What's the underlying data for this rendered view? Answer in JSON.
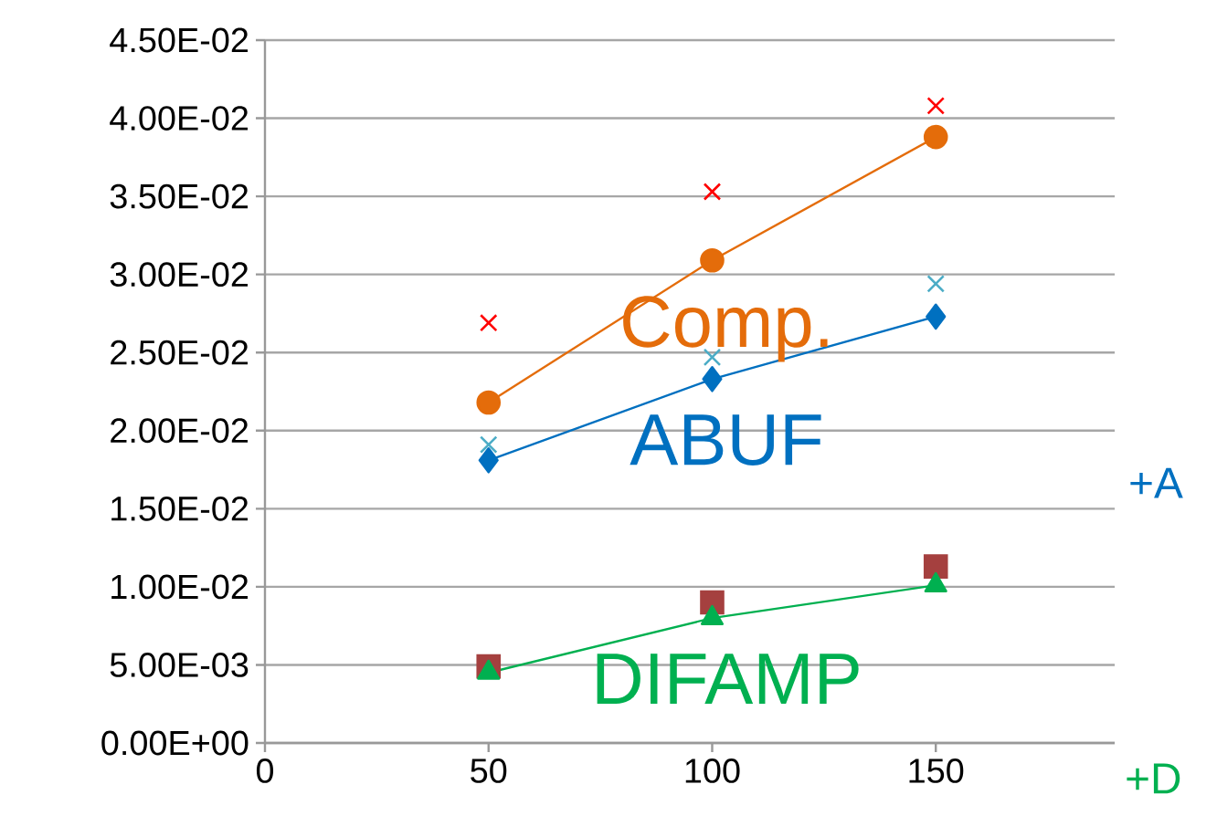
{
  "chart_data": {
    "type": "line",
    "x": [
      50,
      100,
      150
    ],
    "xlim": [
      0,
      190
    ],
    "xticks": [
      0,
      50,
      100,
      150
    ],
    "ylim": [
      0,
      0.045
    ],
    "yticks": [
      {
        "value": 0,
        "label": "0.00E+00"
      },
      {
        "value": 0.005,
        "label": "5.00E-03"
      },
      {
        "value": 0.01,
        "label": "1.00E-02"
      },
      {
        "value": 0.015,
        "label": "1.50E-02"
      },
      {
        "value": 0.02,
        "label": "2.00E-02"
      },
      {
        "value": 0.025,
        "label": "2.50E-02"
      },
      {
        "value": 0.03,
        "label": "3.00E-02"
      },
      {
        "value": 0.035,
        "label": "3.50E-02"
      },
      {
        "value": 0.04,
        "label": "4.00E-02"
      },
      {
        "value": 0.045,
        "label": "4.50E-02"
      }
    ],
    "grid": "y",
    "series": [
      {
        "type": "scatter",
        "marker": "cross",
        "color": "#ff0000",
        "values": [
          0.0269,
          0.0353,
          0.0408
        ]
      },
      {
        "type": "line",
        "marker": "circle",
        "name": "Comp.",
        "color": "#e46c0a",
        "values": [
          0.0218,
          0.0309,
          0.0388
        ]
      },
      {
        "type": "scatter",
        "marker": "cross",
        "color": "#4bacc6",
        "values": [
          0.0191,
          0.0247,
          0.0294
        ]
      },
      {
        "type": "line",
        "marker": "diamond",
        "name": "ABUF",
        "color": "#0070c0",
        "values": [
          0.0181,
          0.0233,
          0.0273
        ]
      },
      {
        "type": "scatter",
        "marker": "square",
        "color": "#a5403f",
        "values": [
          0.0049,
          0.009,
          0.0113
        ]
      },
      {
        "type": "line",
        "marker": "triangle",
        "name": "DIFAMP",
        "color": "#00b050",
        "values": [
          0.0045,
          0.008,
          0.0101
        ]
      }
    ],
    "annotations": [
      "+A",
      "+D"
    ]
  }
}
